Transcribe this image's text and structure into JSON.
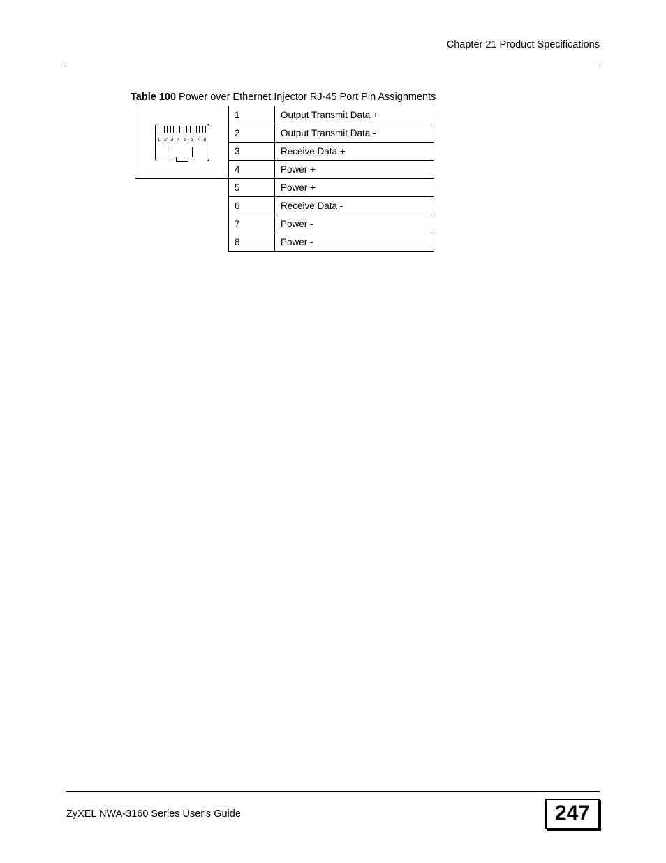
{
  "header": {
    "chapter_text": "Chapter 21 Product Specifications"
  },
  "table": {
    "caption_label": "Table 100",
    "caption_text": "   Power over Ethernet Injector RJ-45 Port Pin Assignments",
    "connector_pins": [
      "1",
      "2",
      "3",
      "4",
      "5",
      "6",
      "7",
      "8"
    ],
    "rows": [
      {
        "pin": "1",
        "desc": "Output Transmit Data +"
      },
      {
        "pin": "2",
        "desc": "Output Transmit Data -"
      },
      {
        "pin": "3",
        "desc": "Receive Data +"
      },
      {
        "pin": "4",
        "desc": "Power +"
      },
      {
        "pin": "5",
        "desc": "Power +"
      },
      {
        "pin": "6",
        "desc": "Receive Data -"
      },
      {
        "pin": "7",
        "desc": "Power -"
      },
      {
        "pin": "8",
        "desc": "Power -"
      }
    ]
  },
  "footer": {
    "guide_text": "ZyXEL NWA-3160 Series User's Guide",
    "page_number": "247"
  },
  "colors": {
    "text": "#000000",
    "background": "#ffffff",
    "rule": "#000000",
    "table_border": "#000000"
  },
  "typography": {
    "body_fontsize_pt": 11,
    "caption_fontsize_pt": 11,
    "pagenum_fontsize_pt": 24,
    "font_family": "Arial"
  }
}
